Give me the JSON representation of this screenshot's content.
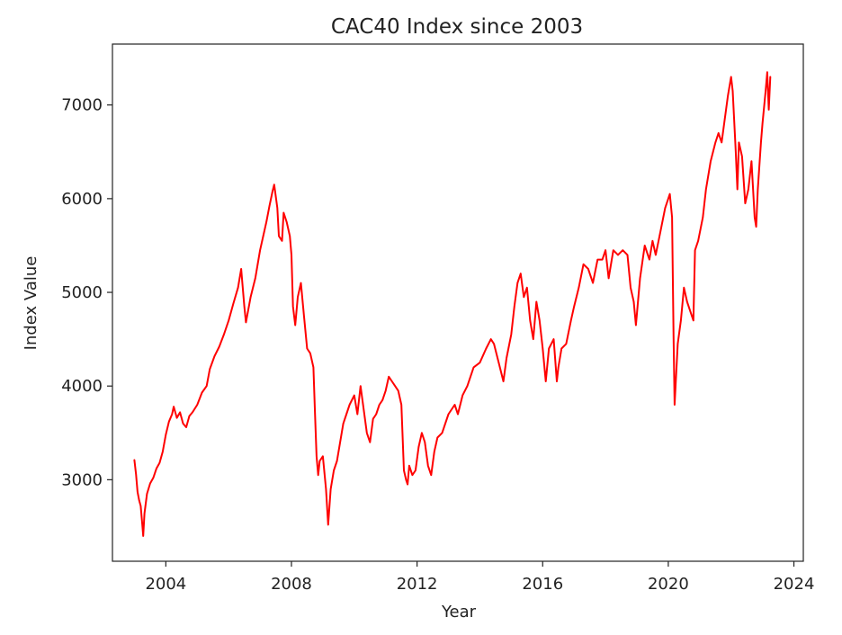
{
  "chart_data": {
    "type": "line",
    "title": "CAC40 Index since 2003",
    "xlabel": "Year",
    "ylabel": "Index Value",
    "xlim": [
      2002.3,
      2024.3
    ],
    "ylim": [
      2130,
      7650
    ],
    "x_ticks": [
      2004,
      2008,
      2012,
      2016,
      2020,
      2024
    ],
    "y_ticks": [
      3000,
      4000,
      5000,
      6000,
      7000
    ],
    "grid": false,
    "legend": "none",
    "series": [
      {
        "color": "#ff0000",
        "points": [
          [
            2003.0,
            3210
          ],
          [
            2003.05,
            3060
          ],
          [
            2003.1,
            2870
          ],
          [
            2003.15,
            2780
          ],
          [
            2003.2,
            2720
          ],
          [
            2003.25,
            2520
          ],
          [
            2003.28,
            2400
          ],
          [
            2003.32,
            2640
          ],
          [
            2003.4,
            2850
          ],
          [
            2003.5,
            2960
          ],
          [
            2003.6,
            3020
          ],
          [
            2003.7,
            3120
          ],
          [
            2003.8,
            3180
          ],
          [
            2003.9,
            3300
          ],
          [
            2004.0,
            3480
          ],
          [
            2004.1,
            3620
          ],
          [
            2004.2,
            3700
          ],
          [
            2004.25,
            3780
          ],
          [
            2004.35,
            3660
          ],
          [
            2004.45,
            3720
          ],
          [
            2004.55,
            3600
          ],
          [
            2004.65,
            3560
          ],
          [
            2004.75,
            3680
          ],
          [
            2004.85,
            3720
          ],
          [
            2005.0,
            3800
          ],
          [
            2005.15,
            3930
          ],
          [
            2005.3,
            4000
          ],
          [
            2005.4,
            4180
          ],
          [
            2005.55,
            4320
          ],
          [
            2005.7,
            4420
          ],
          [
            2005.85,
            4550
          ],
          [
            2006.0,
            4700
          ],
          [
            2006.15,
            4880
          ],
          [
            2006.3,
            5050
          ],
          [
            2006.4,
            5250
          ],
          [
            2006.5,
            4850
          ],
          [
            2006.55,
            4680
          ],
          [
            2006.7,
            4950
          ],
          [
            2006.85,
            5150
          ],
          [
            2007.0,
            5450
          ],
          [
            2007.1,
            5600
          ],
          [
            2007.2,
            5750
          ],
          [
            2007.3,
            5920
          ],
          [
            2007.4,
            6080
          ],
          [
            2007.45,
            6150
          ],
          [
            2007.55,
            5900
          ],
          [
            2007.6,
            5600
          ],
          [
            2007.7,
            5550
          ],
          [
            2007.75,
            5850
          ],
          [
            2007.85,
            5750
          ],
          [
            2007.95,
            5600
          ],
          [
            2008.0,
            5400
          ],
          [
            2008.05,
            4850
          ],
          [
            2008.12,
            4650
          ],
          [
            2008.2,
            4950
          ],
          [
            2008.3,
            5100
          ],
          [
            2008.4,
            4750
          ],
          [
            2008.5,
            4400
          ],
          [
            2008.6,
            4350
          ],
          [
            2008.7,
            4200
          ],
          [
            2008.75,
            3700
          ],
          [
            2008.8,
            3250
          ],
          [
            2008.85,
            3050
          ],
          [
            2008.9,
            3200
          ],
          [
            2009.0,
            3250
          ],
          [
            2009.1,
            2900
          ],
          [
            2009.17,
            2520
          ],
          [
            2009.25,
            2900
          ],
          [
            2009.35,
            3100
          ],
          [
            2009.45,
            3200
          ],
          [
            2009.55,
            3400
          ],
          [
            2009.65,
            3600
          ],
          [
            2009.75,
            3700
          ],
          [
            2009.85,
            3800
          ],
          [
            2010.0,
            3900
          ],
          [
            2010.1,
            3700
          ],
          [
            2010.2,
            4000
          ],
          [
            2010.3,
            3750
          ],
          [
            2010.4,
            3500
          ],
          [
            2010.5,
            3400
          ],
          [
            2010.6,
            3650
          ],
          [
            2010.7,
            3700
          ],
          [
            2010.8,
            3800
          ],
          [
            2010.9,
            3850
          ],
          [
            2011.0,
            3950
          ],
          [
            2011.1,
            4100
          ],
          [
            2011.2,
            4050
          ],
          [
            2011.3,
            4000
          ],
          [
            2011.4,
            3950
          ],
          [
            2011.5,
            3800
          ],
          [
            2011.58,
            3100
          ],
          [
            2011.65,
            3000
          ],
          [
            2011.7,
            2950
          ],
          [
            2011.75,
            3150
          ],
          [
            2011.85,
            3050
          ],
          [
            2011.95,
            3100
          ],
          [
            2012.05,
            3350
          ],
          [
            2012.15,
            3500
          ],
          [
            2012.25,
            3400
          ],
          [
            2012.35,
            3150
          ],
          [
            2012.45,
            3050
          ],
          [
            2012.55,
            3300
          ],
          [
            2012.65,
            3450
          ],
          [
            2012.8,
            3500
          ],
          [
            2013.0,
            3700
          ],
          [
            2013.2,
            3800
          ],
          [
            2013.3,
            3700
          ],
          [
            2013.45,
            3900
          ],
          [
            2013.6,
            4000
          ],
          [
            2013.8,
            4200
          ],
          [
            2014.0,
            4250
          ],
          [
            2014.2,
            4400
          ],
          [
            2014.35,
            4500
          ],
          [
            2014.45,
            4450
          ],
          [
            2014.6,
            4250
          ],
          [
            2014.75,
            4050
          ],
          [
            2014.85,
            4300
          ],
          [
            2015.0,
            4550
          ],
          [
            2015.1,
            4850
          ],
          [
            2015.2,
            5100
          ],
          [
            2015.3,
            5200
          ],
          [
            2015.4,
            4950
          ],
          [
            2015.5,
            5050
          ],
          [
            2015.6,
            4700
          ],
          [
            2015.7,
            4500
          ],
          [
            2015.8,
            4900
          ],
          [
            2015.9,
            4700
          ],
          [
            2016.0,
            4400
          ],
          [
            2016.1,
            4050
          ],
          [
            2016.2,
            4400
          ],
          [
            2016.35,
            4500
          ],
          [
            2016.45,
            4050
          ],
          [
            2016.5,
            4200
          ],
          [
            2016.6,
            4400
          ],
          [
            2016.75,
            4450
          ],
          [
            2016.9,
            4700
          ],
          [
            2017.0,
            4850
          ],
          [
            2017.15,
            5050
          ],
          [
            2017.3,
            5300
          ],
          [
            2017.45,
            5250
          ],
          [
            2017.6,
            5100
          ],
          [
            2017.75,
            5350
          ],
          [
            2017.9,
            5350
          ],
          [
            2018.0,
            5450
          ],
          [
            2018.1,
            5150
          ],
          [
            2018.25,
            5450
          ],
          [
            2018.4,
            5400
          ],
          [
            2018.55,
            5450
          ],
          [
            2018.7,
            5400
          ],
          [
            2018.8,
            5050
          ],
          [
            2018.9,
            4900
          ],
          [
            2018.97,
            4650
          ],
          [
            2019.1,
            5150
          ],
          [
            2019.25,
            5500
          ],
          [
            2019.4,
            5350
          ],
          [
            2019.5,
            5550
          ],
          [
            2019.6,
            5400
          ],
          [
            2019.75,
            5650
          ],
          [
            2019.9,
            5900
          ],
          [
            2020.05,
            6050
          ],
          [
            2020.12,
            5800
          ],
          [
            2020.17,
            4500
          ],
          [
            2020.2,
            3800
          ],
          [
            2020.3,
            4450
          ],
          [
            2020.4,
            4700
          ],
          [
            2020.5,
            5050
          ],
          [
            2020.6,
            4900
          ],
          [
            2020.7,
            4800
          ],
          [
            2020.8,
            4700
          ],
          [
            2020.85,
            5450
          ],
          [
            2020.95,
            5550
          ],
          [
            2021.1,
            5800
          ],
          [
            2021.2,
            6100
          ],
          [
            2021.35,
            6400
          ],
          [
            2021.5,
            6600
          ],
          [
            2021.6,
            6700
          ],
          [
            2021.7,
            6600
          ],
          [
            2021.8,
            6850
          ],
          [
            2021.9,
            7100
          ],
          [
            2022.0,
            7300
          ],
          [
            2022.05,
            7150
          ],
          [
            2022.15,
            6500
          ],
          [
            2022.2,
            6100
          ],
          [
            2022.25,
            6600
          ],
          [
            2022.35,
            6450
          ],
          [
            2022.45,
            5950
          ],
          [
            2022.55,
            6100
          ],
          [
            2022.65,
            6400
          ],
          [
            2022.75,
            5800
          ],
          [
            2022.8,
            5700
          ],
          [
            2022.85,
            6100
          ],
          [
            2022.95,
            6600
          ],
          [
            2023.0,
            6800
          ],
          [
            2023.1,
            7150
          ],
          [
            2023.15,
            7350
          ],
          [
            2023.2,
            6950
          ],
          [
            2023.25,
            7300
          ]
        ]
      }
    ]
  }
}
